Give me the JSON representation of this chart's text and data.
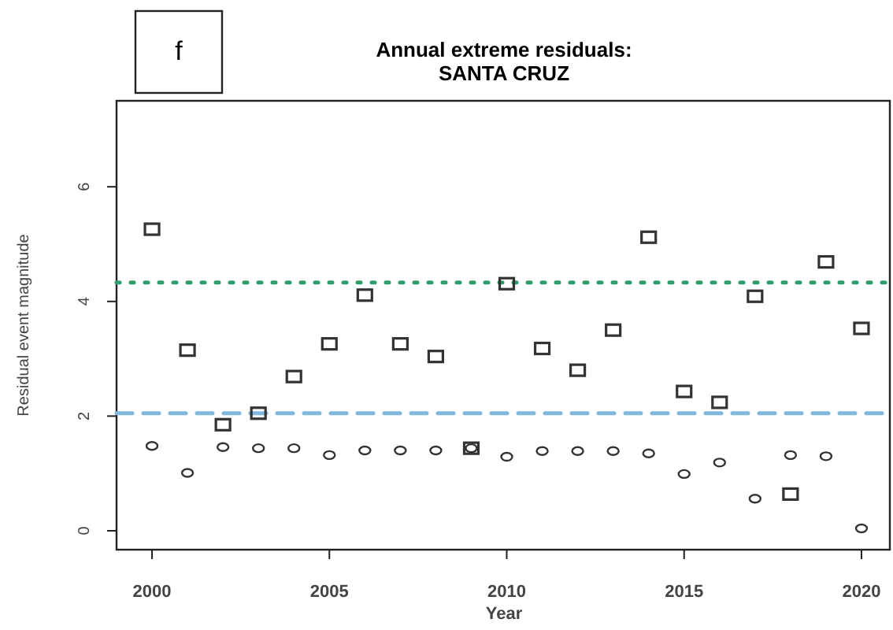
{
  "chart_data": {
    "type": "scatter",
    "title": "Annual extreme residuals:\nSANTA CRUZ",
    "xlabel": "Year",
    "ylabel": "Residual event magnitude",
    "annotations": [
      "f"
    ],
    "x": [
      2000,
      2001,
      2002,
      2003,
      2004,
      2005,
      2006,
      2007,
      2008,
      2009,
      2010,
      2011,
      2012,
      2013,
      2014,
      2015,
      2016,
      2017,
      2018,
      2019,
      2020
    ],
    "series": [
      {
        "color": "#333333",
        "marker": "square",
        "values": [
          5.26,
          3.15,
          1.85,
          2.05,
          2.69,
          3.26,
          4.11,
          3.26,
          3.04,
          1.44,
          4.31,
          3.18,
          2.8,
          3.5,
          5.12,
          2.43,
          2.24,
          4.09,
          0.64,
          4.69,
          3.53
        ]
      },
      {
        "color": "#333333",
        "marker": "circle",
        "values": [
          1.48,
          1.01,
          1.46,
          1.44,
          1.44,
          1.32,
          1.4,
          1.4,
          1.4,
          1.44,
          1.29,
          1.39,
          1.39,
          1.39,
          1.35,
          0.99,
          1.19,
          0.56,
          1.32,
          1.3,
          0.04
        ]
      }
    ],
    "ref_lines": [
      {
        "axis": "y",
        "value": 4.33,
        "color": "#2e9e6a",
        "line_style": "dotted"
      },
      {
        "axis": "y",
        "value": 2.05,
        "color": "#7fb8dc",
        "line_style": "dashed"
      }
    ],
    "xlim": [
      1999,
      2020.8
    ],
    "ylim": [
      -0.33,
      7.5
    ],
    "xticks": [
      2000,
      2005,
      2010,
      2015,
      2020
    ],
    "yticks": [
      0,
      2,
      4,
      6
    ],
    "grid": false
  }
}
